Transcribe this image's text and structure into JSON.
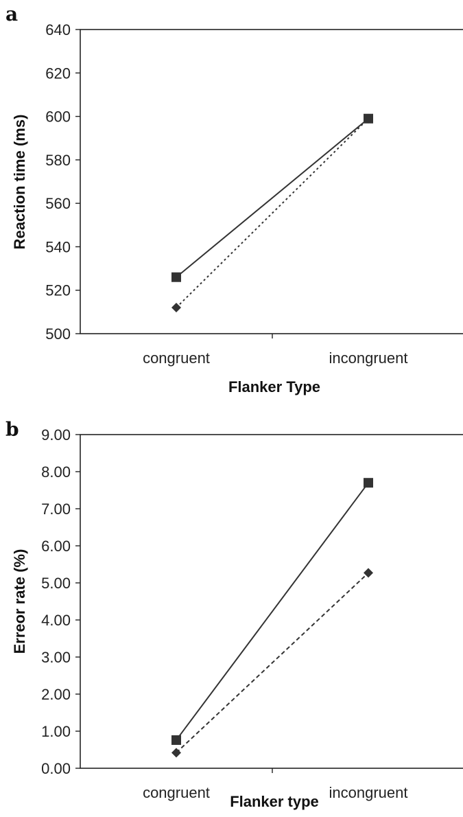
{
  "chart_data": [
    {
      "panel_label": "a",
      "type": "line",
      "categories": [
        "congruent",
        "incongruent"
      ],
      "xlabel": "Flanker Type",
      "ylabel": "Reaction time (ms)",
      "ylim": [
        500,
        640
      ],
      "yticks": [
        "500",
        "520",
        "540",
        "560",
        "580",
        "600",
        "620",
        "640"
      ],
      "grid": false,
      "series": [
        {
          "values": [
            526,
            599
          ],
          "marker": "square",
          "line": "solid",
          "color": "#333333"
        },
        {
          "values": [
            512,
            599
          ],
          "marker": "diamond",
          "line": "dotted",
          "color": "#333333"
        }
      ]
    },
    {
      "panel_label": "b",
      "type": "line",
      "categories": [
        "congruent",
        "incongruent"
      ],
      "xlabel": "Flanker type",
      "ylabel": "Erreor rate (%)",
      "ylim": [
        0,
        9
      ],
      "yticks": [
        "0.00",
        "1.00",
        "2.00",
        "3.00",
        "4.00",
        "5.00",
        "6.00",
        "7.00",
        "8.00",
        "9.00"
      ],
      "grid": false,
      "series": [
        {
          "values": [
            0.76,
            7.7
          ],
          "marker": "square",
          "line": "solid",
          "color": "#333333"
        },
        {
          "values": [
            0.42,
            5.27
          ],
          "marker": "diamond",
          "line": "dashed",
          "color": "#333333"
        }
      ]
    }
  ]
}
